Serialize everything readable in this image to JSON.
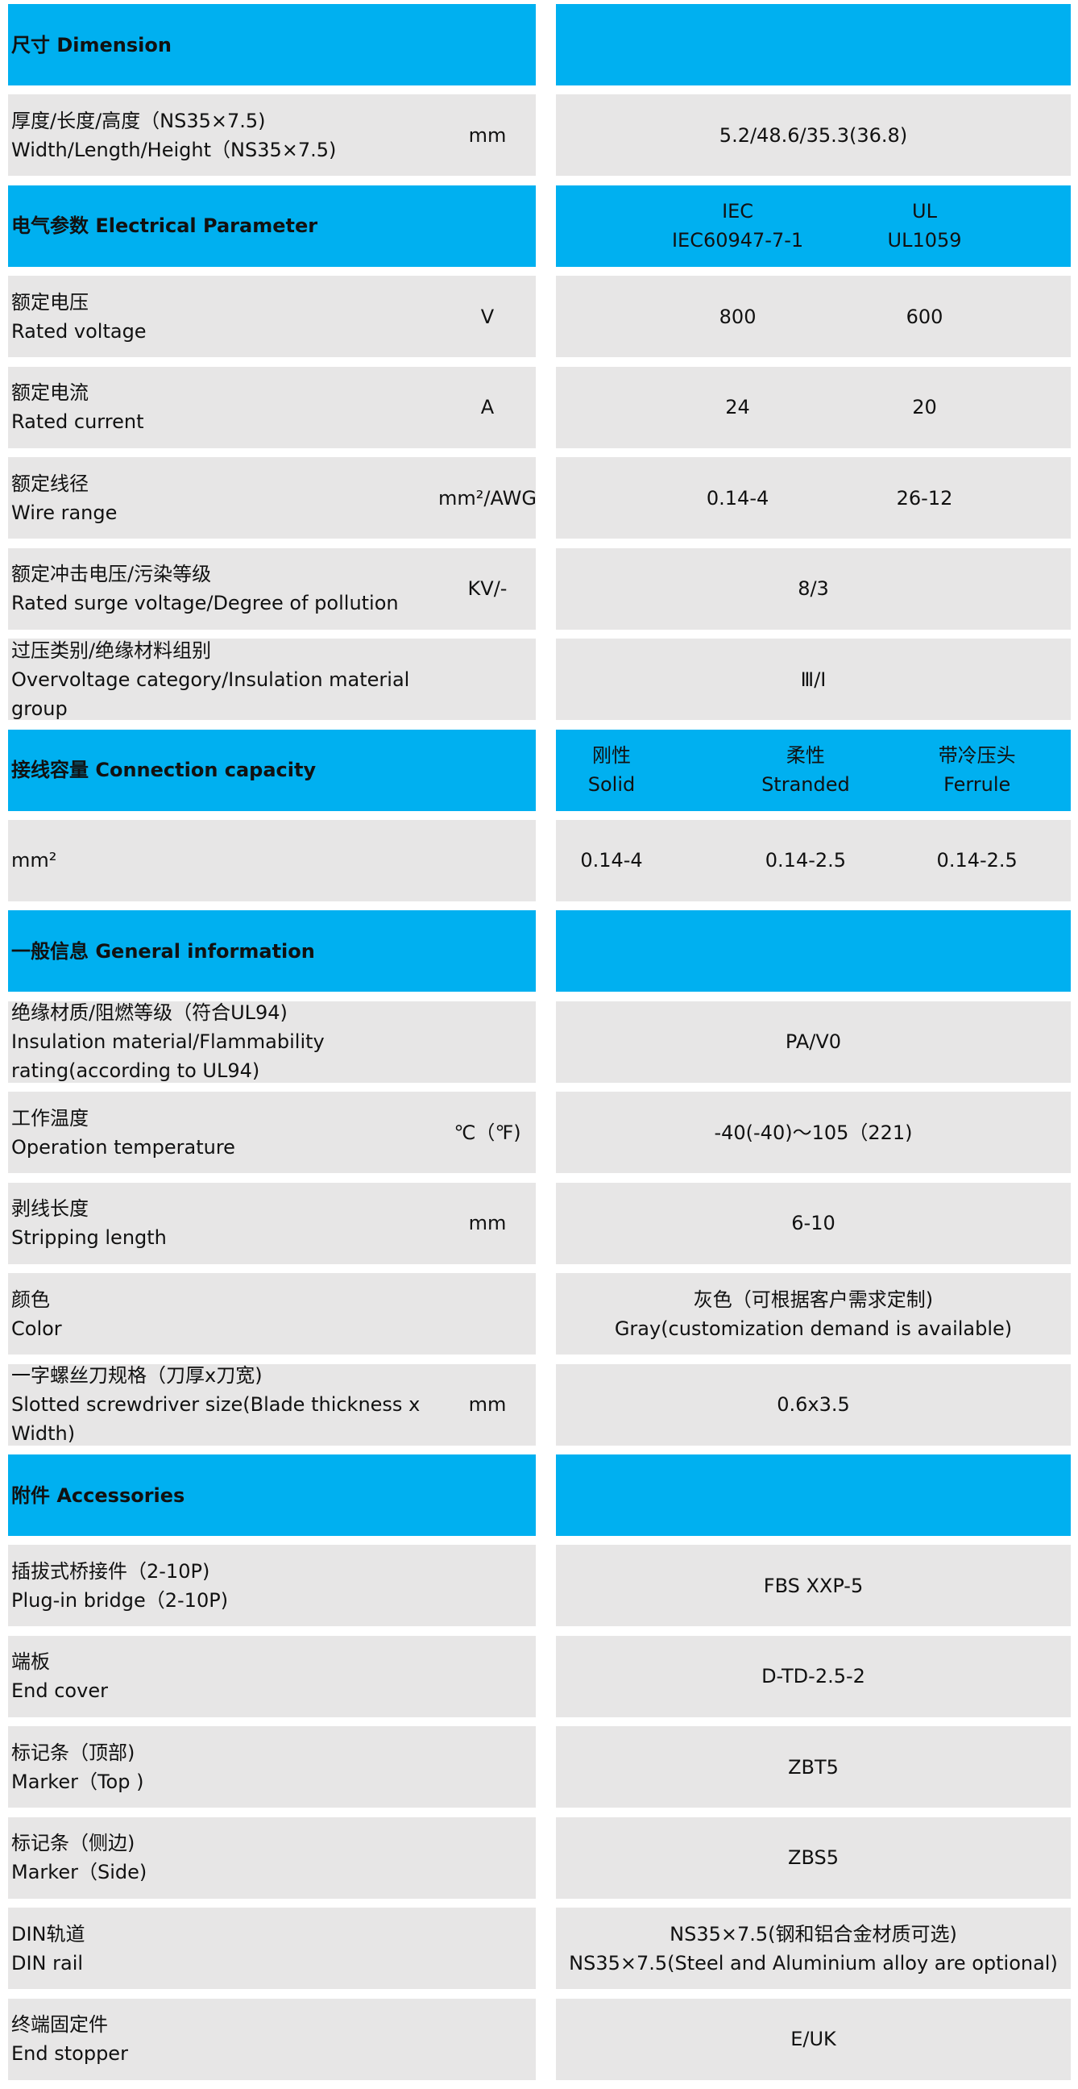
{
  "colors": {
    "header_bg": "#00B0F0",
    "row_bg": "#E7E6E6"
  },
  "rows": [
    {
      "type": "header",
      "label": [
        "尺寸 Dimension"
      ],
      "values": []
    },
    {
      "type": "data",
      "label": [
        "厚度/长度/高度（NS35×7.5)",
        "Width/Length/Height（NS35×7.5)"
      ],
      "unit": "mm",
      "values": [
        [
          "5.2/48.6/35.3(36.8)"
        ]
      ]
    },
    {
      "type": "header",
      "label": [
        "电气参数 Electrical Parameter"
      ],
      "values": [
        [
          "IEC",
          "IEC60947-7-1"
        ],
        [
          "UL",
          "UL1059"
        ]
      ]
    },
    {
      "type": "data",
      "label": [
        "额定电压",
        "Rated voltage"
      ],
      "unit": "V",
      "values": [
        [
          "800"
        ],
        [
          "600"
        ]
      ]
    },
    {
      "type": "data",
      "label": [
        "额定电流",
        "Rated current"
      ],
      "unit": "A",
      "values": [
        [
          "24"
        ],
        [
          "20"
        ]
      ]
    },
    {
      "type": "data",
      "label": [
        "额定线径",
        "Wire range"
      ],
      "unit": "mm²/AWG",
      "values": [
        [
          "0.14-4"
        ],
        [
          "26-12"
        ]
      ]
    },
    {
      "type": "data",
      "label": [
        "额定冲击电压/污染等级",
        "Rated surge voltage/Degree of pollution"
      ],
      "unit": "KV/-",
      "values": [
        [
          "8/3"
        ]
      ]
    },
    {
      "type": "data",
      "label": [
        "过压类别/绝缘材料组别",
        "Overvoltage category/Insulation material group"
      ],
      "unit": "",
      "values": [
        [
          "Ⅲ/Ⅰ"
        ]
      ]
    },
    {
      "type": "header",
      "label": [
        "接线容量 Connection capacity"
      ],
      "values": [
        [
          "刚性",
          "Solid"
        ],
        [
          "柔性",
          "Stranded"
        ],
        [
          "带冷压头",
          "Ferrule"
        ]
      ]
    },
    {
      "type": "data",
      "label": [
        "mm²"
      ],
      "unit": "",
      "values": [
        [
          "0.14-4"
        ],
        [
          "0.14-2.5"
        ],
        [
          "0.14-2.5"
        ]
      ]
    },
    {
      "type": "header",
      "label": [
        "一般信息 General information"
      ],
      "values": []
    },
    {
      "type": "data",
      "label": [
        "绝缘材质/阻燃等级（符合UL94)",
        "Insulation material/Flammability rating(according to UL94)"
      ],
      "unit": "",
      "values": [
        [
          "PA/V0"
        ]
      ]
    },
    {
      "type": "data",
      "label": [
        "工作温度",
        "Operation temperature"
      ],
      "unit": "℃（℉)",
      "values": [
        [
          "-40(-40)～105（221)"
        ]
      ]
    },
    {
      "type": "data",
      "label": [
        "剥线长度",
        "Stripping length"
      ],
      "unit": "mm",
      "values": [
        [
          "6-10"
        ]
      ]
    },
    {
      "type": "data",
      "label": [
        "颜色",
        "Color"
      ],
      "unit": "",
      "values": [
        [
          "灰色（可根据客户需求定制)",
          "Gray(customization demand is available)"
        ]
      ]
    },
    {
      "type": "data",
      "label": [
        "一字螺丝刀规格（刀厚x刀宽)",
        "Slotted screwdriver size(Blade thickness x Width)"
      ],
      "unit": "mm",
      "values": [
        [
          "0.6x3.5"
        ]
      ]
    },
    {
      "type": "header",
      "label": [
        "附件 Accessories"
      ],
      "values": []
    },
    {
      "type": "data",
      "label": [
        "插拔式桥接件（2-10P)",
        "Plug-in bridge（2-10P)"
      ],
      "unit": "",
      "values": [
        [
          "FBS XXP-5"
        ]
      ]
    },
    {
      "type": "data",
      "label": [
        "端板",
        "End cover"
      ],
      "unit": "",
      "values": [
        [
          "D-TD-2.5-2"
        ]
      ]
    },
    {
      "type": "data",
      "label": [
        "标记条（顶部)",
        "Marker（Top )"
      ],
      "unit": "",
      "values": [
        [
          "ZBT5"
        ]
      ]
    },
    {
      "type": "data",
      "label": [
        "标记条（侧边)",
        "Marker（Side)"
      ],
      "unit": "",
      "values": [
        [
          "ZBS5"
        ]
      ]
    },
    {
      "type": "data",
      "label": [
        "DIN轨道",
        "DIN rail"
      ],
      "unit": "",
      "values": [
        [
          "NS35×7.5(钢和铝合金材质可选)",
          "NS35×7.5(Steel and Aluminium alloy are optional)"
        ]
      ]
    },
    {
      "type": "data",
      "label": [
        "终端固定件",
        "End stopper"
      ],
      "unit": "",
      "values": [
        [
          "E/UK"
        ]
      ]
    }
  ]
}
